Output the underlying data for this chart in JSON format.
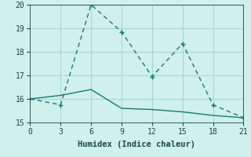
{
  "xlabel": "Humidex (Indice chaleur)",
  "bg_color": "#cff0eb",
  "grid_color": "#a8d8d0",
  "line_color": "#1a7a6e",
  "xlim": [
    0,
    21
  ],
  "ylim": [
    15,
    20
  ],
  "xticks": [
    0,
    3,
    6,
    9,
    12,
    15,
    18,
    21
  ],
  "yticks": [
    15,
    16,
    17,
    18,
    19,
    20
  ],
  "line1_x": [
    0,
    3,
    6,
    9,
    12,
    15,
    18,
    21
  ],
  "line1_y": [
    16.0,
    15.75,
    20.0,
    18.85,
    16.95,
    18.35,
    15.75,
    15.2
  ],
  "line2_x": [
    0,
    3,
    6,
    9,
    12,
    15,
    18,
    21
  ],
  "line2_y": [
    16.0,
    16.15,
    16.4,
    15.6,
    15.55,
    15.45,
    15.3,
    15.2
  ]
}
